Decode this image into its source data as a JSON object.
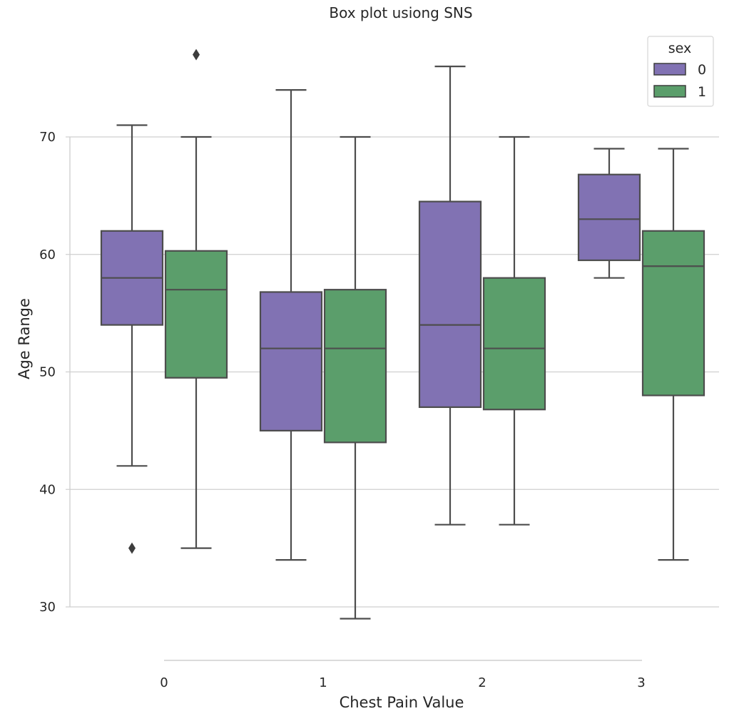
{
  "chart_data": {
    "type": "box",
    "title": "Box plot usiong SNS",
    "xlabel": "Chest Pain Value",
    "ylabel": "Age Range",
    "categories": [
      "0",
      "1",
      "2",
      "3"
    ],
    "yticks": [
      30,
      40,
      50,
      60,
      70
    ],
    "ylim": [
      25,
      81
    ],
    "grid": "horizontal",
    "legend": {
      "title": "sex",
      "position": "top-right",
      "entries": [
        "0",
        "1"
      ]
    },
    "series": [
      {
        "name": "0",
        "color": "#8172b3",
        "boxes": [
          {
            "category": "0",
            "whislo": 42,
            "q1": 54,
            "med": 58,
            "q3": 62,
            "whishi": 71,
            "fliers": [
              35
            ]
          },
          {
            "category": "1",
            "whislo": 34,
            "q1": 45,
            "med": 52,
            "q3": 56.8,
            "whishi": 74,
            "fliers": []
          },
          {
            "category": "2",
            "whislo": 37,
            "q1": 47,
            "med": 54,
            "q3": 64.5,
            "whishi": 76,
            "fliers": []
          },
          {
            "category": "3",
            "whislo": 58,
            "q1": 59.5,
            "med": 63,
            "q3": 66.8,
            "whishi": 69,
            "fliers": []
          }
        ]
      },
      {
        "name": "1",
        "color": "#5b9e6b",
        "boxes": [
          {
            "category": "0",
            "whislo": 35,
            "q1": 49.5,
            "med": 57,
            "q3": 60.3,
            "whishi": 70,
            "fliers": [
              77
            ]
          },
          {
            "category": "1",
            "whislo": 29,
            "q1": 44,
            "med": 52,
            "q3": 57,
            "whishi": 70,
            "fliers": []
          },
          {
            "category": "2",
            "whislo": 37,
            "q1": 46.8,
            "med": 52,
            "q3": 58,
            "whishi": 70,
            "fliers": []
          },
          {
            "category": "3",
            "whislo": 34,
            "q1": 48,
            "med": 59,
            "q3": 62,
            "whishi": 69,
            "fliers": []
          }
        ]
      }
    ]
  }
}
